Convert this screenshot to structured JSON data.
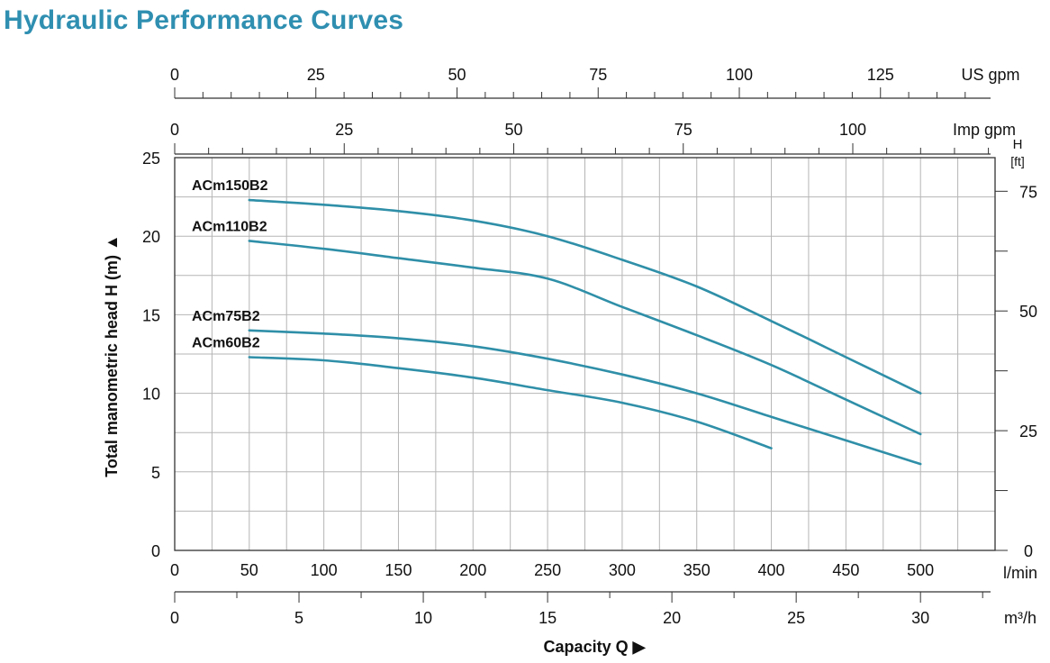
{
  "page_title": "Hydraulic Performance Curves",
  "colors": {
    "title": "#2f8fb1",
    "curve": "#2f8fa8",
    "grid": "#b5b5b5",
    "axis": "#333333"
  },
  "chart_data": {
    "type": "line",
    "title": "Hydraulic Performance Curves",
    "xlabel": "Capacity Q",
    "ylabel": "Total manometric head H (m)",
    "xlim": [
      0,
      550
    ],
    "ylim": [
      0,
      25
    ],
    "grid": true,
    "x_ticks": [
      "0",
      "50",
      "100",
      "150",
      "200",
      "250",
      "300",
      "350",
      "400",
      "450",
      "500"
    ],
    "x_unit": "l/min",
    "y_ticks": [
      "0",
      "5",
      "10",
      "15",
      "20",
      "25"
    ],
    "secondary_axes": {
      "us_gpm": {
        "unit": "US gpm",
        "ticks": [
          "0",
          "25",
          "50",
          "75",
          "100",
          "125"
        ]
      },
      "imp_gpm": {
        "unit": "Imp gpm",
        "ticks": [
          "0",
          "25",
          "50",
          "75",
          "100"
        ]
      },
      "m3h": {
        "unit": "m³/h",
        "ticks": [
          "0",
          "5",
          "10",
          "15",
          "20",
          "25",
          "30"
        ]
      },
      "h_ft": {
        "unit_line1": "H",
        "unit_line2": "[ft]",
        "ticks": [
          "0",
          "25",
          "50",
          "75"
        ]
      }
    },
    "series": [
      {
        "name": "ACm150B2",
        "x": [
          50,
          100,
          150,
          200,
          250,
          300,
          350,
          400,
          450,
          500
        ],
        "y": [
          22.3,
          22.0,
          21.6,
          21.0,
          20.0,
          18.5,
          16.8,
          14.6,
          12.3,
          10.0
        ]
      },
      {
        "name": "ACm110B2",
        "x": [
          50,
          100,
          150,
          200,
          250,
          300,
          350,
          400,
          450,
          500
        ],
        "y": [
          19.7,
          19.2,
          18.6,
          18.0,
          17.3,
          15.5,
          13.7,
          11.8,
          9.6,
          7.4
        ]
      },
      {
        "name": "ACm75B2",
        "x": [
          50,
          100,
          150,
          200,
          250,
          300,
          350,
          400,
          450,
          500
        ],
        "y": [
          14.0,
          13.8,
          13.5,
          13.0,
          12.2,
          11.2,
          10.0,
          8.5,
          7.0,
          5.5
        ]
      },
      {
        "name": "ACm60B2",
        "x": [
          50,
          100,
          150,
          200,
          250,
          300,
          350,
          400
        ],
        "y": [
          12.3,
          12.1,
          11.6,
          11.0,
          10.2,
          9.4,
          8.2,
          6.5
        ]
      }
    ]
  }
}
